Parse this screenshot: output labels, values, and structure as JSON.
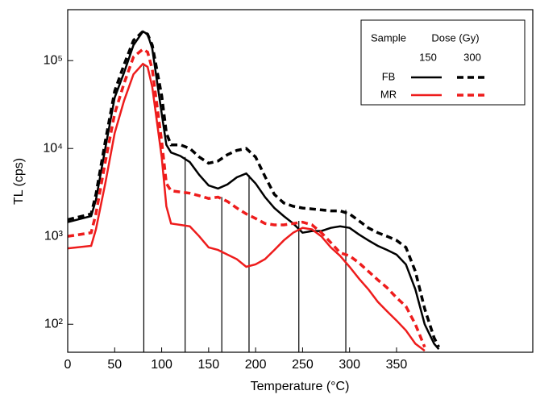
{
  "chart_data": {
    "type": "line",
    "x_label": "Temperature (°C)",
    "y_label": "TL (cps)",
    "log_y": true,
    "xlim": [
      0,
      495
    ],
    "ylim": [
      48,
      380000
    ],
    "xticks": [
      0,
      50,
      100,
      150,
      200,
      250,
      300,
      350
    ],
    "yticks": [
      {
        "value": 100,
        "label": "10²"
      },
      {
        "value": 1000,
        "label": "10³"
      },
      {
        "value": 10000,
        "label": "10⁴"
      },
      {
        "value": 100000,
        "label": "10⁵"
      }
    ],
    "x": [
      0,
      25,
      30,
      40,
      50,
      60,
      70,
      80,
      85,
      90,
      100,
      105,
      110,
      120,
      130,
      140,
      150,
      160,
      170,
      180,
      190,
      200,
      210,
      220,
      230,
      240,
      250,
      260,
      270,
      280,
      290,
      300,
      310,
      320,
      330,
      340,
      350,
      360,
      370,
      380,
      390,
      395
    ],
    "series": [
      {
        "name": "FB",
        "dose": 150,
        "color": "#000000",
        "dashed": false,
        "values": [
          1450,
          1700,
          2600,
          10000,
          38000,
          73000,
          150000,
          215000,
          200000,
          137000,
          25000,
          11000,
          9000,
          8200,
          7000,
          5000,
          3800,
          3500,
          3900,
          4700,
          5200,
          4000,
          2800,
          2100,
          1700,
          1400,
          1100,
          1150,
          1150,
          1250,
          1300,
          1250,
          1050,
          900,
          780,
          700,
          620,
          480,
          250,
          100,
          60,
          52
        ]
      },
      {
        "name": "FB",
        "dose": 300,
        "color": "#000000",
        "dashed": true,
        "values": [
          1550,
          1800,
          3000,
          12000,
          45000,
          90000,
          170000,
          215000,
          200000,
          150000,
          40000,
          15000,
          11000,
          11000,
          10000,
          8000,
          6800,
          7200,
          8500,
          9500,
          10000,
          8000,
          4800,
          3000,
          2400,
          2200,
          2100,
          2050,
          2000,
          1950,
          1950,
          1800,
          1500,
          1250,
          1100,
          1000,
          900,
          750,
          400,
          150,
          70,
          55
        ]
      },
      {
        "name": "MR",
        "dose": 150,
        "color": "#ee1c1c",
        "dashed": false,
        "values": [
          730,
          780,
          1200,
          4000,
          15000,
          35000,
          70000,
          92000,
          85000,
          50000,
          8000,
          2200,
          1400,
          1350,
          1300,
          1000,
          750,
          700,
          620,
          550,
          450,
          480,
          550,
          700,
          900,
          1100,
          1250,
          1200,
          1000,
          750,
          600,
          450,
          330,
          250,
          180,
          140,
          110,
          85,
          60,
          50,
          null,
          null
        ]
      },
      {
        "name": "MR",
        "dose": 300,
        "color": "#ee1c1c",
        "dashed": true,
        "values": [
          1000,
          1100,
          1800,
          7000,
          25000,
          55000,
          110000,
          135000,
          125000,
          80000,
          12000,
          4000,
          3300,
          3200,
          3100,
          2900,
          2700,
          2800,
          2500,
          2100,
          1800,
          1600,
          1400,
          1350,
          1350,
          1400,
          1450,
          1350,
          1100,
          850,
          650,
          600,
          500,
          400,
          320,
          260,
          200,
          160,
          100,
          55,
          null,
          null
        ]
      }
    ],
    "legend": {
      "sample_header": "Sample",
      "dose_header": "Dose (Gy)"
    },
    "markers_x": [
      81,
      125,
      164,
      193,
      246,
      296
    ],
    "markers_top": [
      90000,
      8000,
      2800,
      5000,
      1500,
      2000
    ]
  }
}
